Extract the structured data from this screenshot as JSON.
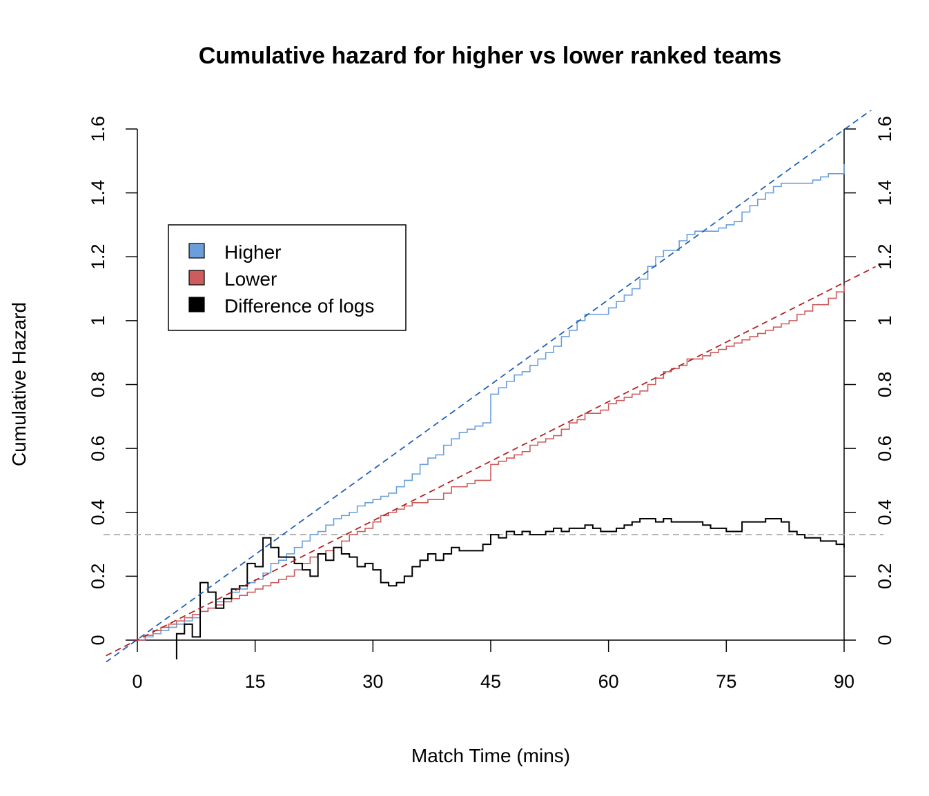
{
  "chart_data": {
    "type": "line",
    "title": "Cumulative hazard for higher vs lower ranked teams",
    "xlabel": "Match Time (mins)",
    "ylabel": "Cumulative Hazard",
    "xlim": [
      0,
      90
    ],
    "ylim": [
      0,
      1.6
    ],
    "x_ticks": [
      "0",
      "15",
      "30",
      "45",
      "60",
      "75",
      "90"
    ],
    "y_ticks": [
      "0",
      "0.2",
      "0.4",
      "0.6",
      "0.8",
      "1",
      "1.2",
      "1.4",
      "1.6"
    ],
    "x_tick_values": [
      0,
      15,
      30,
      45,
      60,
      75,
      90
    ],
    "y_tick_values": [
      0,
      0.2,
      0.4,
      0.6,
      0.8,
      1.0,
      1.2,
      1.4,
      1.6
    ],
    "grid": false,
    "legend": {
      "position": "top-left",
      "entries": [
        {
          "label": "Higher",
          "color": "#6a9fdc"
        },
        {
          "label": "Lower",
          "color": "#cd5c5c"
        },
        {
          "label": "Difference of logs",
          "color": "#000000"
        }
      ]
    },
    "series": [
      {
        "name": "Higher",
        "style": "step",
        "color": "#6a9fdc",
        "x": [
          0,
          1,
          2,
          3,
          4,
          5,
          6,
          7,
          8,
          9,
          10,
          11,
          12,
          13,
          14,
          15,
          16,
          17,
          18,
          19,
          20,
          21,
          22,
          23,
          24,
          25,
          26,
          27,
          28,
          29,
          30,
          31,
          32,
          33,
          34,
          35,
          36,
          37,
          38,
          39,
          40,
          41,
          42,
          43,
          44,
          45,
          46,
          47,
          48,
          49,
          50,
          51,
          52,
          53,
          54,
          55,
          56,
          57,
          58,
          59,
          60,
          61,
          62,
          63,
          64,
          65,
          66,
          67,
          68,
          69,
          70,
          71,
          72,
          73,
          74,
          75,
          76,
          77,
          78,
          79,
          80,
          81,
          82,
          83,
          84,
          85,
          86,
          87,
          88,
          89,
          90
        ],
        "y": [
          0,
          0.01,
          0.02,
          0.03,
          0.04,
          0.05,
          0.06,
          0.07,
          0.09,
          0.1,
          0.12,
          0.13,
          0.15,
          0.16,
          0.18,
          0.19,
          0.21,
          0.24,
          0.25,
          0.27,
          0.29,
          0.31,
          0.33,
          0.34,
          0.36,
          0.38,
          0.39,
          0.4,
          0.42,
          0.43,
          0.44,
          0.45,
          0.46,
          0.48,
          0.5,
          0.52,
          0.55,
          0.57,
          0.58,
          0.61,
          0.63,
          0.65,
          0.66,
          0.67,
          0.68,
          0.77,
          0.79,
          0.81,
          0.83,
          0.84,
          0.86,
          0.88,
          0.9,
          0.92,
          0.95,
          0.97,
          1.0,
          1.02,
          1.02,
          1.02,
          1.04,
          1.06,
          1.08,
          1.1,
          1.13,
          1.17,
          1.2,
          1.22,
          1.22,
          1.25,
          1.27,
          1.28,
          1.28,
          1.28,
          1.29,
          1.3,
          1.31,
          1.34,
          1.36,
          1.38,
          1.4,
          1.42,
          1.43,
          1.43,
          1.43,
          1.43,
          1.44,
          1.45,
          1.46,
          1.46,
          1.49
        ]
      },
      {
        "name": "Lower",
        "style": "step",
        "color": "#cd5c5c",
        "x": [
          0,
          1,
          2,
          3,
          4,
          5,
          6,
          7,
          8,
          9,
          10,
          11,
          12,
          13,
          14,
          15,
          16,
          17,
          18,
          19,
          20,
          21,
          22,
          23,
          24,
          25,
          26,
          27,
          28,
          29,
          30,
          31,
          32,
          33,
          34,
          35,
          36,
          37,
          38,
          39,
          40,
          41,
          42,
          43,
          44,
          45,
          46,
          47,
          48,
          49,
          50,
          51,
          52,
          53,
          54,
          55,
          56,
          57,
          58,
          59,
          60,
          61,
          62,
          63,
          64,
          65,
          66,
          67,
          68,
          69,
          70,
          71,
          72,
          73,
          74,
          75,
          76,
          77,
          78,
          79,
          80,
          81,
          82,
          83,
          84,
          85,
          86,
          87,
          88,
          89,
          90
        ],
        "y": [
          0,
          0.015,
          0.03,
          0.04,
          0.05,
          0.06,
          0.07,
          0.08,
          0.09,
          0.1,
          0.11,
          0.12,
          0.13,
          0.14,
          0.15,
          0.16,
          0.17,
          0.18,
          0.19,
          0.2,
          0.22,
          0.24,
          0.26,
          0.27,
          0.28,
          0.29,
          0.31,
          0.33,
          0.34,
          0.35,
          0.37,
          0.39,
          0.4,
          0.41,
          0.42,
          0.43,
          0.43,
          0.44,
          0.44,
          0.46,
          0.48,
          0.48,
          0.49,
          0.5,
          0.5,
          0.55,
          0.56,
          0.57,
          0.58,
          0.59,
          0.61,
          0.62,
          0.63,
          0.64,
          0.66,
          0.68,
          0.69,
          0.71,
          0.71,
          0.72,
          0.74,
          0.75,
          0.76,
          0.77,
          0.78,
          0.8,
          0.82,
          0.84,
          0.85,
          0.86,
          0.88,
          0.88,
          0.89,
          0.9,
          0.91,
          0.92,
          0.93,
          0.94,
          0.95,
          0.96,
          0.97,
          0.98,
          0.99,
          1.0,
          1.02,
          1.03,
          1.05,
          1.05,
          1.07,
          1.09,
          1.11
        ]
      },
      {
        "name": "Difference of logs",
        "style": "step",
        "color": "#000000",
        "x": [
          5,
          6,
          7,
          8,
          9,
          10,
          11,
          12,
          13,
          14,
          15,
          16,
          17,
          18,
          19,
          20,
          21,
          22,
          23,
          24,
          25,
          26,
          27,
          28,
          29,
          30,
          31,
          32,
          33,
          34,
          35,
          36,
          37,
          38,
          39,
          40,
          41,
          42,
          43,
          44,
          45,
          46,
          47,
          48,
          49,
          50,
          51,
          52,
          53,
          54,
          55,
          56,
          57,
          58,
          59,
          60,
          61,
          62,
          63,
          64,
          65,
          66,
          67,
          68,
          69,
          70,
          71,
          72,
          73,
          74,
          75,
          76,
          77,
          78,
          79,
          80,
          81,
          82,
          83,
          84,
          85,
          86,
          87,
          88,
          89,
          90
        ],
        "y": [
          0.02,
          0.05,
          0.01,
          0.18,
          0.15,
          0.1,
          0.13,
          0.16,
          0.17,
          0.24,
          0.23,
          0.32,
          0.29,
          0.26,
          0.26,
          0.24,
          0.22,
          0.2,
          0.27,
          0.25,
          0.29,
          0.27,
          0.26,
          0.23,
          0.24,
          0.22,
          0.18,
          0.17,
          0.18,
          0.2,
          0.23,
          0.25,
          0.27,
          0.25,
          0.27,
          0.29,
          0.28,
          0.28,
          0.28,
          0.3,
          0.33,
          0.32,
          0.34,
          0.33,
          0.34,
          0.33,
          0.33,
          0.34,
          0.35,
          0.34,
          0.35,
          0.35,
          0.36,
          0.35,
          0.34,
          0.34,
          0.35,
          0.36,
          0.37,
          0.38,
          0.38,
          0.37,
          0.38,
          0.37,
          0.37,
          0.37,
          0.37,
          0.36,
          0.35,
          0.35,
          0.34,
          0.34,
          0.37,
          0.37,
          0.37,
          0.38,
          0.38,
          0.37,
          0.34,
          0.33,
          0.32,
          0.32,
          0.31,
          0.31,
          0.3,
          0.29
        ]
      },
      {
        "name": "Higher fit",
        "style": "dashed",
        "color": "#2060b8",
        "x": [
          -4,
          94
        ],
        "y": [
          -0.069,
          1.669
        ]
      },
      {
        "name": "Lower fit",
        "style": "dashed",
        "color": "#b22222",
        "x": [
          -4,
          94
        ],
        "y": [
          -0.049,
          1.169
        ]
      }
    ],
    "reference_line": {
      "style": "dashed",
      "color": "#a0a0a0",
      "y": 0.33
    }
  }
}
